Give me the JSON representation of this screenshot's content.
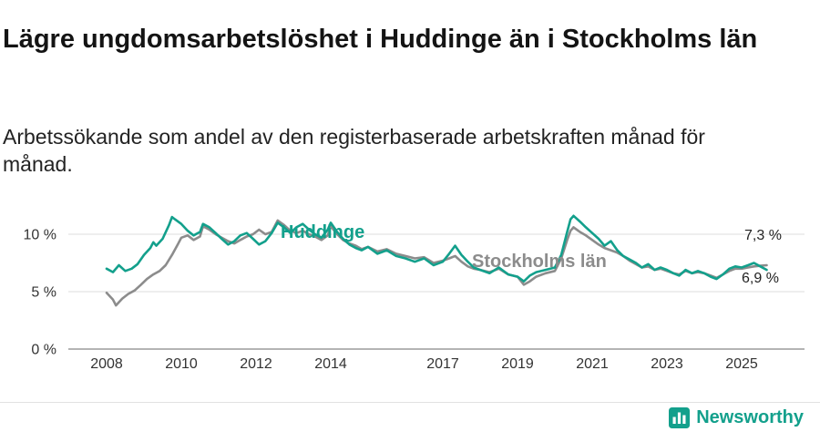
{
  "header": {
    "title": "Lägre ungdomsarbetslöshet i Huddinge än i Stockholms län",
    "subtitle": "Arbetssökande som andel av den registerbaserade arbetskraften månad för månad."
  },
  "footer": {
    "brand": "Newsworthy",
    "logo_icon": "bar-chart-icon"
  },
  "colors": {
    "accent": "#13a08c",
    "series_gray": "#8c8c8c",
    "grid": "#dcdcdc",
    "baseline": "#9b9b9b",
    "tick_text": "#333333"
  },
  "chart_data": {
    "type": "line",
    "title": "Lägre ungdomsarbetslöshet i Huddinge än i Stockholms län",
    "subtitle": "Arbetssökande som andel av den registerbaserade arbetskraften månad för månad.",
    "unit": "%",
    "xlabel": "",
    "ylabel": "",
    "xlim": [
      2007.7,
      2026.2
    ],
    "ylim": [
      0,
      12.5
    ],
    "grid": "horizontal",
    "legend": "inline-labels",
    "x_ticks": [
      2008,
      2010,
      2012,
      2014,
      2017,
      2019,
      2021,
      2023,
      2025
    ],
    "x_tick_labels": [
      "2008",
      "2010",
      "2012",
      "2014",
      "2017",
      "2019",
      "2021",
      "2023",
      "2025"
    ],
    "y_ticks": [
      0,
      5,
      10
    ],
    "y_tick_labels": [
      "0 %",
      "5 %",
      "10 %"
    ],
    "series": [
      {
        "name": "Huddinge",
        "color": "#13a08c",
        "end_label": "6,9 %",
        "end_value": 6.9,
        "points": [
          [
            2008.0,
            7.0
          ],
          [
            2008.17,
            6.7
          ],
          [
            2008.33,
            7.3
          ],
          [
            2008.5,
            6.8
          ],
          [
            2008.67,
            7.0
          ],
          [
            2008.83,
            7.4
          ],
          [
            2009.0,
            8.2
          ],
          [
            2009.17,
            8.8
          ],
          [
            2009.25,
            9.3
          ],
          [
            2009.33,
            9.0
          ],
          [
            2009.5,
            9.6
          ],
          [
            2009.67,
            10.8
          ],
          [
            2009.75,
            11.5
          ],
          [
            2009.83,
            11.3
          ],
          [
            2010.0,
            10.9
          ],
          [
            2010.17,
            10.3
          ],
          [
            2010.33,
            9.9
          ],
          [
            2010.5,
            10.2
          ],
          [
            2010.58,
            10.9
          ],
          [
            2010.75,
            10.6
          ],
          [
            2010.92,
            10.1
          ],
          [
            2011.08,
            9.6
          ],
          [
            2011.25,
            9.1
          ],
          [
            2011.42,
            9.4
          ],
          [
            2011.58,
            9.9
          ],
          [
            2011.75,
            10.1
          ],
          [
            2011.92,
            9.6
          ],
          [
            2012.08,
            9.1
          ],
          [
            2012.25,
            9.4
          ],
          [
            2012.42,
            10.1
          ],
          [
            2012.58,
            11.0
          ],
          [
            2012.75,
            10.6
          ],
          [
            2012.92,
            10.1
          ],
          [
            2013.08,
            10.6
          ],
          [
            2013.25,
            10.9
          ],
          [
            2013.42,
            10.4
          ],
          [
            2013.58,
            10.0
          ],
          [
            2013.75,
            9.7
          ],
          [
            2013.92,
            10.4
          ],
          [
            2014.0,
            11.0
          ],
          [
            2014.17,
            10.2
          ],
          [
            2014.33,
            9.6
          ],
          [
            2014.5,
            9.1
          ],
          [
            2014.67,
            8.8
          ],
          [
            2014.83,
            8.6
          ],
          [
            2015.0,
            8.9
          ],
          [
            2015.25,
            8.3
          ],
          [
            2015.5,
            8.6
          ],
          [
            2015.75,
            8.1
          ],
          [
            2016.0,
            7.9
          ],
          [
            2016.25,
            7.6
          ],
          [
            2016.5,
            7.9
          ],
          [
            2016.75,
            7.3
          ],
          [
            2017.0,
            7.6
          ],
          [
            2017.17,
            8.3
          ],
          [
            2017.33,
            9.0
          ],
          [
            2017.5,
            8.2
          ],
          [
            2017.67,
            7.6
          ],
          [
            2017.83,
            7.1
          ],
          [
            2018.0,
            6.9
          ],
          [
            2018.25,
            6.6
          ],
          [
            2018.5,
            7.1
          ],
          [
            2018.75,
            6.5
          ],
          [
            2019.0,
            6.3
          ],
          [
            2019.17,
            5.9
          ],
          [
            2019.33,
            6.4
          ],
          [
            2019.5,
            6.7
          ],
          [
            2019.75,
            6.9
          ],
          [
            2020.0,
            7.1
          ],
          [
            2020.17,
            8.2
          ],
          [
            2020.33,
            10.2
          ],
          [
            2020.42,
            11.3
          ],
          [
            2020.5,
            11.6
          ],
          [
            2020.67,
            11.1
          ],
          [
            2020.83,
            10.6
          ],
          [
            2021.0,
            10.1
          ],
          [
            2021.17,
            9.6
          ],
          [
            2021.33,
            9.0
          ],
          [
            2021.5,
            9.4
          ],
          [
            2021.67,
            8.6
          ],
          [
            2021.83,
            8.1
          ],
          [
            2022.0,
            7.8
          ],
          [
            2022.17,
            7.5
          ],
          [
            2022.33,
            7.1
          ],
          [
            2022.5,
            7.4
          ],
          [
            2022.67,
            6.9
          ],
          [
            2022.83,
            7.1
          ],
          [
            2023.0,
            6.9
          ],
          [
            2023.17,
            6.6
          ],
          [
            2023.33,
            6.4
          ],
          [
            2023.5,
            6.9
          ],
          [
            2023.67,
            6.6
          ],
          [
            2023.83,
            6.8
          ],
          [
            2024.0,
            6.6
          ],
          [
            2024.17,
            6.3
          ],
          [
            2024.33,
            6.1
          ],
          [
            2024.5,
            6.5
          ],
          [
            2024.67,
            7.0
          ],
          [
            2024.83,
            7.2
          ],
          [
            2025.0,
            7.1
          ],
          [
            2025.17,
            7.3
          ],
          [
            2025.33,
            7.5
          ],
          [
            2025.5,
            7.2
          ],
          [
            2025.67,
            6.9
          ]
        ]
      },
      {
        "name": "Stockholms län",
        "color": "#8c8c8c",
        "end_label": "7,3 %",
        "end_value": 7.3,
        "points": [
          [
            2008.0,
            4.9
          ],
          [
            2008.17,
            4.3
          ],
          [
            2008.25,
            3.8
          ],
          [
            2008.42,
            4.4
          ],
          [
            2008.58,
            4.8
          ],
          [
            2008.75,
            5.1
          ],
          [
            2008.92,
            5.6
          ],
          [
            2009.08,
            6.1
          ],
          [
            2009.25,
            6.5
          ],
          [
            2009.42,
            6.8
          ],
          [
            2009.58,
            7.3
          ],
          [
            2009.75,
            8.2
          ],
          [
            2009.92,
            9.2
          ],
          [
            2010.0,
            9.7
          ],
          [
            2010.17,
            9.9
          ],
          [
            2010.33,
            9.5
          ],
          [
            2010.5,
            9.8
          ],
          [
            2010.58,
            10.7
          ],
          [
            2010.75,
            10.4
          ],
          [
            2010.92,
            10.0
          ],
          [
            2011.08,
            9.7
          ],
          [
            2011.25,
            9.4
          ],
          [
            2011.42,
            9.2
          ],
          [
            2011.58,
            9.5
          ],
          [
            2011.75,
            9.8
          ],
          [
            2011.92,
            10.0
          ],
          [
            2012.08,
            10.4
          ],
          [
            2012.25,
            10.0
          ],
          [
            2012.42,
            10.2
          ],
          [
            2012.58,
            11.2
          ],
          [
            2012.75,
            10.8
          ],
          [
            2012.92,
            10.3
          ],
          [
            2013.08,
            10.1
          ],
          [
            2013.25,
            10.3
          ],
          [
            2013.42,
            10.0
          ],
          [
            2013.58,
            9.8
          ],
          [
            2013.75,
            9.5
          ],
          [
            2013.92,
            9.9
          ],
          [
            2014.0,
            10.7
          ],
          [
            2014.17,
            10.0
          ],
          [
            2014.33,
            9.5
          ],
          [
            2014.5,
            9.2
          ],
          [
            2014.67,
            9.0
          ],
          [
            2014.83,
            8.7
          ],
          [
            2015.0,
            8.9
          ],
          [
            2015.25,
            8.5
          ],
          [
            2015.5,
            8.7
          ],
          [
            2015.75,
            8.3
          ],
          [
            2016.0,
            8.1
          ],
          [
            2016.25,
            7.9
          ],
          [
            2016.5,
            8.0
          ],
          [
            2016.75,
            7.5
          ],
          [
            2017.0,
            7.7
          ],
          [
            2017.17,
            7.9
          ],
          [
            2017.33,
            8.1
          ],
          [
            2017.5,
            7.6
          ],
          [
            2017.67,
            7.2
          ],
          [
            2017.83,
            7.0
          ],
          [
            2018.0,
            6.9
          ],
          [
            2018.25,
            6.7
          ],
          [
            2018.5,
            7.0
          ],
          [
            2018.75,
            6.5
          ],
          [
            2019.0,
            6.3
          ],
          [
            2019.17,
            5.6
          ],
          [
            2019.33,
            5.9
          ],
          [
            2019.5,
            6.3
          ],
          [
            2019.75,
            6.6
          ],
          [
            2020.0,
            6.8
          ],
          [
            2020.17,
            7.9
          ],
          [
            2020.33,
            9.5
          ],
          [
            2020.42,
            10.3
          ],
          [
            2020.5,
            10.6
          ],
          [
            2020.67,
            10.2
          ],
          [
            2020.83,
            9.9
          ],
          [
            2021.0,
            9.5
          ],
          [
            2021.17,
            9.1
          ],
          [
            2021.33,
            8.8
          ],
          [
            2021.5,
            8.6
          ],
          [
            2021.67,
            8.4
          ],
          [
            2021.83,
            8.1
          ],
          [
            2022.0,
            7.7
          ],
          [
            2022.17,
            7.4
          ],
          [
            2022.33,
            7.1
          ],
          [
            2022.5,
            7.2
          ],
          [
            2022.67,
            6.9
          ],
          [
            2022.83,
            7.0
          ],
          [
            2023.0,
            6.8
          ],
          [
            2023.17,
            6.6
          ],
          [
            2023.33,
            6.5
          ],
          [
            2023.5,
            6.8
          ],
          [
            2023.67,
            6.6
          ],
          [
            2023.83,
            6.7
          ],
          [
            2024.0,
            6.6
          ],
          [
            2024.17,
            6.4
          ],
          [
            2024.33,
            6.2
          ],
          [
            2024.5,
            6.5
          ],
          [
            2024.67,
            6.8
          ],
          [
            2024.83,
            7.0
          ],
          [
            2025.0,
            7.0
          ],
          [
            2025.17,
            7.1
          ],
          [
            2025.33,
            7.2
          ],
          [
            2025.5,
            7.25
          ],
          [
            2025.67,
            7.3
          ]
        ]
      }
    ]
  }
}
